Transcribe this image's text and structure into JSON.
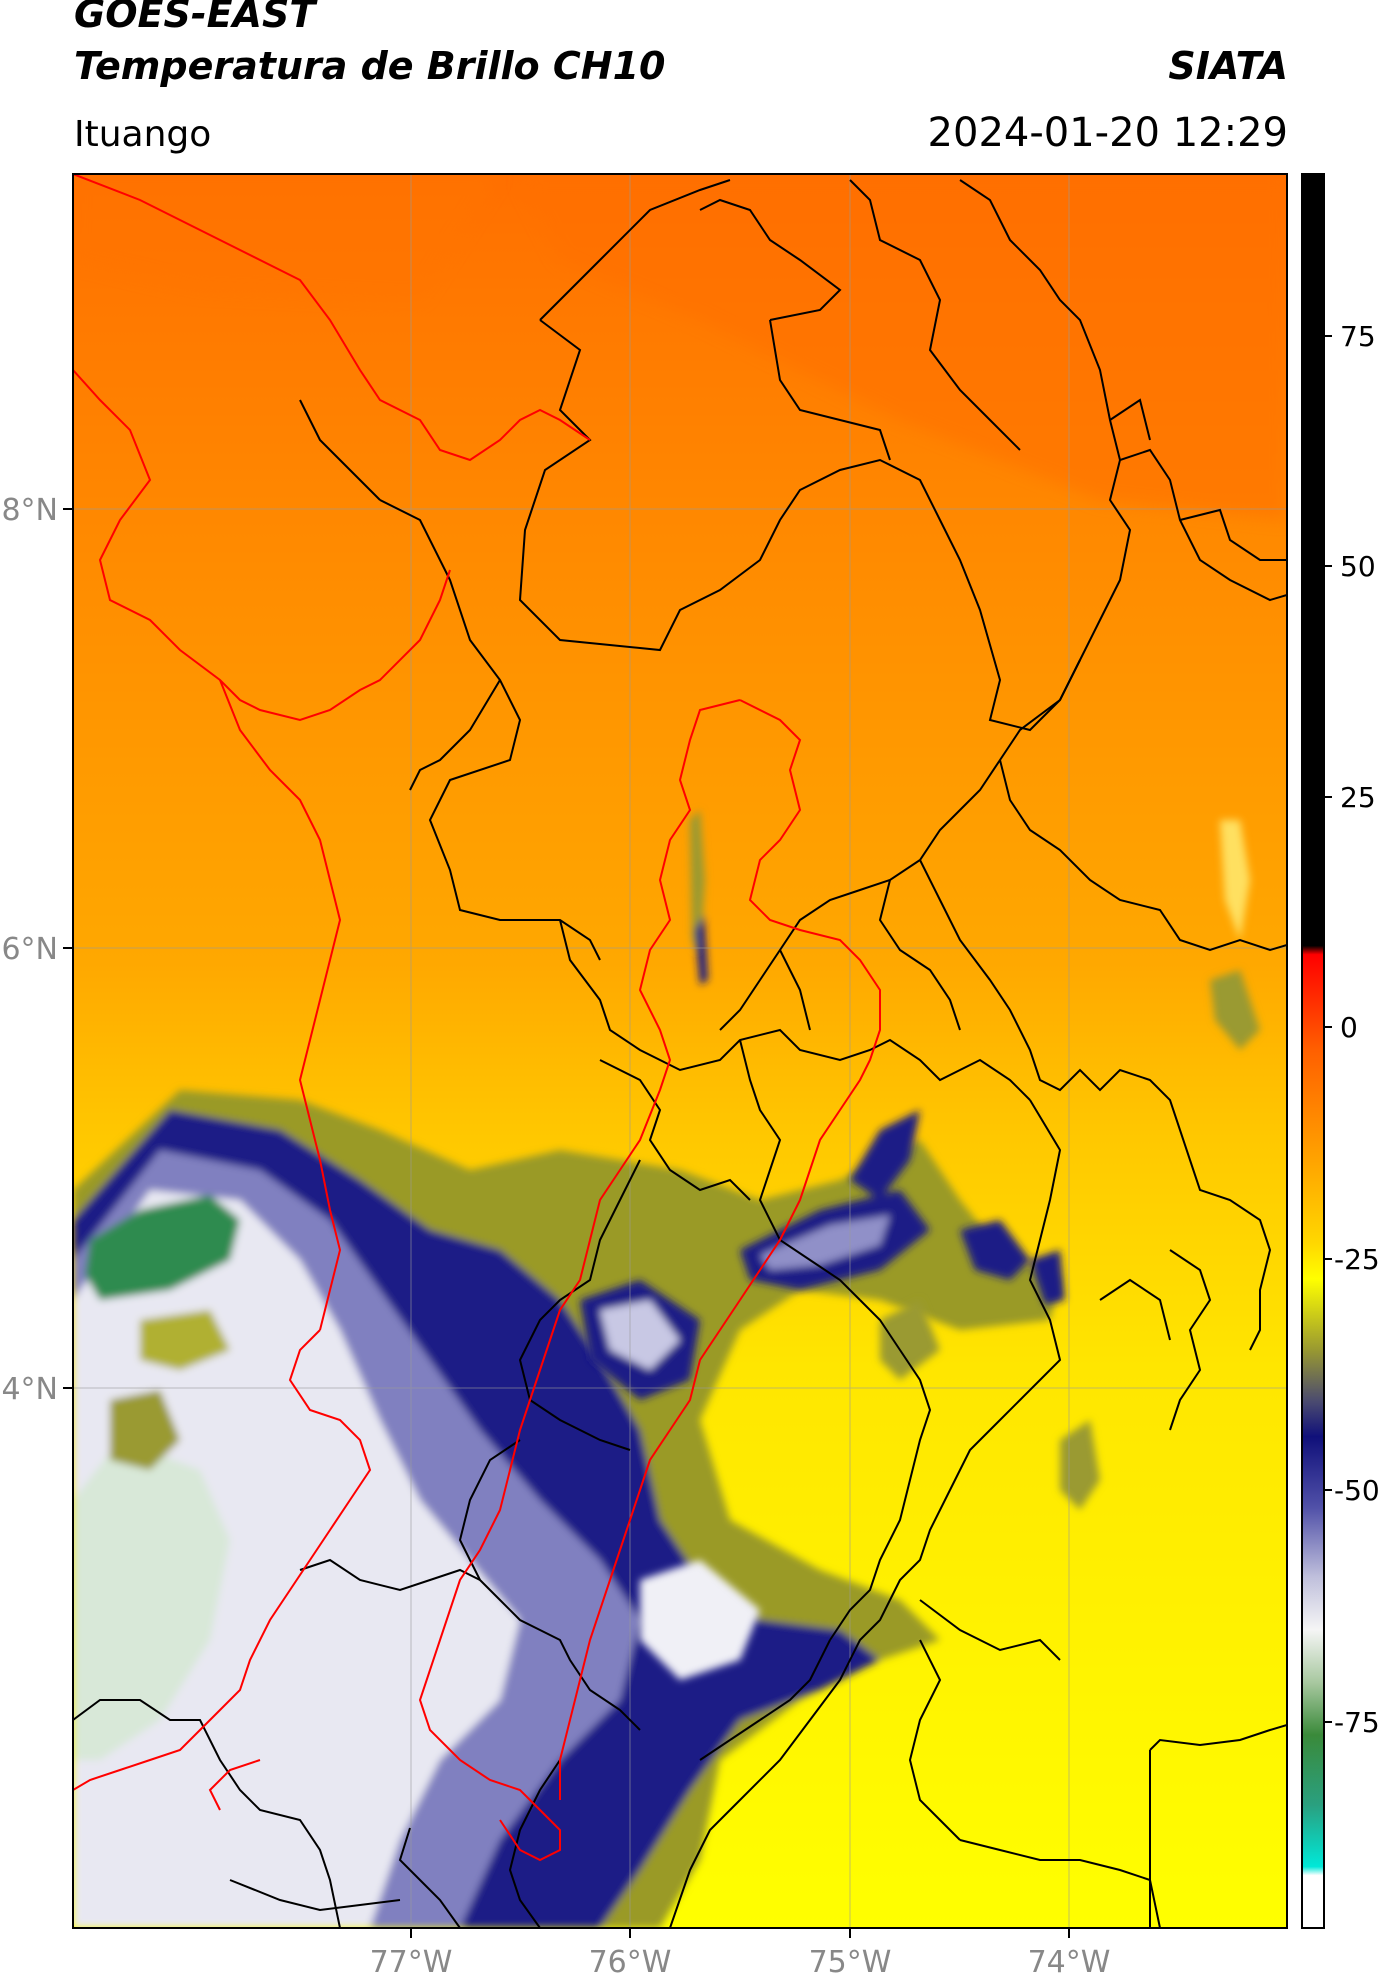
{
  "header": {
    "satellite": "GOES-EAST",
    "product": "Temperatura de Brillo CH10",
    "brand": "SIATA",
    "region": "Ituango",
    "timestamp": "2024-01-20 12:29"
  },
  "axes": {
    "lat_ticks": [
      "8°N",
      "6°N",
      "4°N"
    ],
    "lon_ticks": [
      "77°W",
      "76°W",
      "75°W",
      "74°W"
    ]
  },
  "colorbar": {
    "ticks": [
      "75",
      "50",
      "25",
      "0",
      "-25",
      "-50",
      "-75"
    ],
    "colors": {
      "black": "#000000",
      "red": "#ff0000",
      "orange": "#ff8c00",
      "yellow": "#ffff00",
      "olive": "#8a8a2a",
      "navy": "#1a1a80",
      "white": "#f5f5f5",
      "green": "#2e8b3a",
      "cyan": "#00e5d5"
    }
  },
  "overlays": {
    "department_borders_color": "#000000",
    "basin_and_coast_color": "#ff0000"
  }
}
